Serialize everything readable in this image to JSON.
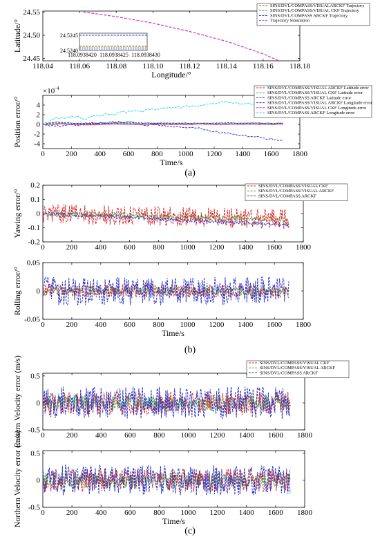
{
  "figure": {
    "labels": [
      "(a)",
      "(b)",
      "(c)"
    ]
  },
  "chart_data": [
    {
      "id": "trajectory",
      "type": "line",
      "xlabel": "Longitude/°",
      "ylabel": "Latitude/°",
      "xlim": [
        118.04,
        118.18
      ],
      "ylim": [
        24.445,
        24.552
      ],
      "xticks": [
        "118.04",
        "118.06",
        "118.08",
        "118.10",
        "118.12",
        "118.14",
        "118.16",
        "118.18"
      ],
      "yticks": [
        "24.45",
        "24.50",
        "24.55"
      ],
      "legend": [
        "SINS/DVL/COMPASS/VISUALARCKF Trajectory",
        "SINS/DVL/COMPASS/VISUAL CKF Trajectory",
        "SINS/DVL/COMPASS ARCKF Trajectory",
        "Trajectory Simulation"
      ],
      "colors": [
        "#d6282b",
        "#35b335",
        "#2a35c8",
        "#d62bd0"
      ],
      "x": [
        118.062,
        118.08,
        118.1,
        118.12,
        118.14,
        118.16,
        118.168
      ],
      "series": [
        {
          "name": "Trajectory Simulation",
          "values": [
            24.55,
            24.54,
            24.526,
            24.508,
            24.487,
            24.46,
            24.446
          ]
        }
      ],
      "inset": {
        "xticks": [
          "118.0938420",
          "118.0938425",
          "118.0938430"
        ],
        "yticks": [
          "24.5245",
          "24.5240"
        ]
      }
    },
    {
      "id": "position-error",
      "type": "line",
      "xlabel": "Time/s",
      "ylabel": "Position error/°",
      "exponent": "×10",
      "exponent_power": "−4",
      "xlim": [
        0,
        1800
      ],
      "ylim": [
        -5,
        6
      ],
      "xticks": [
        "0",
        "200",
        "400",
        "600",
        "800",
        "1000",
        "1200",
        "1400",
        "1600",
        "1800"
      ],
      "yticks": [
        "4",
        "2",
        "0",
        "-2",
        "-4"
      ],
      "legend": [
        "SINS/DVL/COMPASS/VISUAL ARCKF Latitude error",
        "SINS/DVL/COMPASS/VISUAL CKF Latitude error",
        "SINS/DVL/COMPASS ARCKF Latitude error",
        "SINS/DVL/COMPASS/VISUAL ARCKF Longitude error",
        "SINS/DVL/COMPASS/VISUAL CKF Longitude error",
        "SINS/DVL/COMPASS ARCKF Longitude error"
      ],
      "colors": [
        "#d6282b",
        "#35b335",
        "#2a35c8",
        "#2a35c8",
        "#d62bd0",
        "#22d8d8"
      ],
      "x": [
        0,
        100,
        200,
        300,
        400,
        500,
        600,
        700,
        800,
        900,
        1000,
        1100,
        1200,
        1300,
        1400,
        1500,
        1600,
        1700
      ],
      "series": [
        {
          "name": "SINS/DVL/COMPASS/VISUAL ARCKF Latitude error",
          "values": [
            0,
            0.1,
            0,
            -0.1,
            0,
            0.1,
            0,
            0,
            0.1,
            0,
            0,
            0.1,
            0,
            0,
            0.1,
            0,
            0,
            0.1
          ]
        },
        {
          "name": "SINS/DVL/COMPASS/VISUAL CKF Latitude error",
          "values": [
            0,
            0.3,
            0.2,
            0.2,
            0.3,
            0.3,
            0.2,
            0.2,
            0.3,
            0.3,
            0.2,
            0.3,
            0.3,
            0.2,
            0.3,
            0.3,
            0.2,
            0.3
          ]
        },
        {
          "name": "SINS/DVL/COMPASS ARCKF Latitude error",
          "values": [
            0,
            0.5,
            0.3,
            0.2,
            0.2,
            0.3,
            0.4,
            0.3,
            0.2,
            0.2,
            0.3,
            0.2,
            0.2,
            0.3,
            0.2,
            0.3,
            0.2,
            0.2
          ]
        },
        {
          "name": "SINS/DVL/COMPASS/VISUAL ARCKF Longitude error",
          "values": [
            0,
            -0.3,
            -0.2,
            0.1,
            0.3,
            0.5,
            0.4,
            0.0,
            -0.2,
            -0.3,
            -0.5,
            -0.9,
            -1.5,
            -1.8,
            -2.2,
            -2.6,
            -3.0,
            -3.5
          ]
        },
        {
          "name": "SINS/DVL/COMPASS/VISUAL CKF Longitude error",
          "values": [
            0,
            0.1,
            0,
            0.1,
            0,
            0.1,
            0,
            0.1,
            0,
            0.1,
            0,
            0.1,
            0,
            0.1,
            0,
            0.1,
            0,
            0.1
          ]
        },
        {
          "name": "SINS/DVL/COMPASS ARCKF Longitude error",
          "values": [
            0,
            1.3,
            1.6,
            1.2,
            1.9,
            2.2,
            2.6,
            2.8,
            3.3,
            3.4,
            3.6,
            3.9,
            4.4,
            4.6,
            4.1,
            4.3,
            4.0,
            3.8
          ]
        }
      ]
    },
    {
      "id": "yawing-error",
      "type": "line",
      "xlabel": "",
      "ylabel": "Yawing error/°",
      "xlim": [
        0,
        1800
      ],
      "ylim": [
        -0.2,
        0.2
      ],
      "xticks": [
        "0",
        "200",
        "400",
        "600",
        "800",
        "1000",
        "1200",
        "1400",
        "1600",
        "1800"
      ],
      "yticks": [
        "0.2",
        "0.1",
        "0",
        "-0.1",
        "-0.2"
      ],
      "legend": [
        "SINS/DVL/COMPASS/VISUAL CKF",
        "SINS/DVL/COMPASS/VISUAL ARCKF",
        "SINS/DVL/COMPASS ARCKF"
      ],
      "colors": [
        "#d6282b",
        "#35b335",
        "#2a35c8"
      ],
      "trend": [
        0.0,
        -0.08
      ]
    },
    {
      "id": "rolling-error",
      "type": "line",
      "xlabel": "Time/s",
      "ylabel": "Rolling error/°",
      "xlim": [
        0,
        1800
      ],
      "ylim": [
        -0.05,
        0.05
      ],
      "xticks": [
        "0",
        "200",
        "400",
        "600",
        "800",
        "1000",
        "1200",
        "1400",
        "1600",
        "1800"
      ],
      "yticks": [
        "0.05",
        "0",
        "-0.05"
      ],
      "colors": [
        "#d6282b",
        "#35b335",
        "#2a35c8"
      ],
      "trend": [
        0.0,
        0.0
      ]
    },
    {
      "id": "eastern-velocity-error",
      "type": "line",
      "xlabel": "",
      "ylabel": "Eastern Velocity error (m/s)",
      "xlim": [
        0,
        1800
      ],
      "ylim": [
        -0.5,
        0.55
      ],
      "xticks": [
        "0",
        "200",
        "400",
        "600",
        "800",
        "1000",
        "1200",
        "1400",
        "1600",
        "1800"
      ],
      "yticks": [
        "0.5",
        "0",
        "-0.5"
      ],
      "legend": [
        "SINS/DVL/COMPASS/VISUAL CKF",
        "SINS/DVL/COMPASS/VISUAL ARCKF",
        "SINS/DVL/COMPASS ARCKF"
      ],
      "colors": [
        "#d6282b",
        "#35b335",
        "#2a35c8"
      ],
      "trend": [
        0.0,
        0.0
      ]
    },
    {
      "id": "northern-velocity-error",
      "type": "line",
      "xlabel": "Time/s",
      "ylabel": "Northern Velocity error (m/s)",
      "xlim": [
        0,
        1800
      ],
      "ylim": [
        -0.5,
        0.55
      ],
      "xticks": [
        "0",
        "200",
        "400",
        "600",
        "800",
        "1000",
        "1200",
        "1400",
        "1600",
        "1800"
      ],
      "yticks": [
        "0.5",
        "0",
        "-0.5"
      ],
      "colors": [
        "#d6282b",
        "#35b335",
        "#2a35c8"
      ],
      "trend": [
        0.0,
        0.0
      ]
    }
  ]
}
